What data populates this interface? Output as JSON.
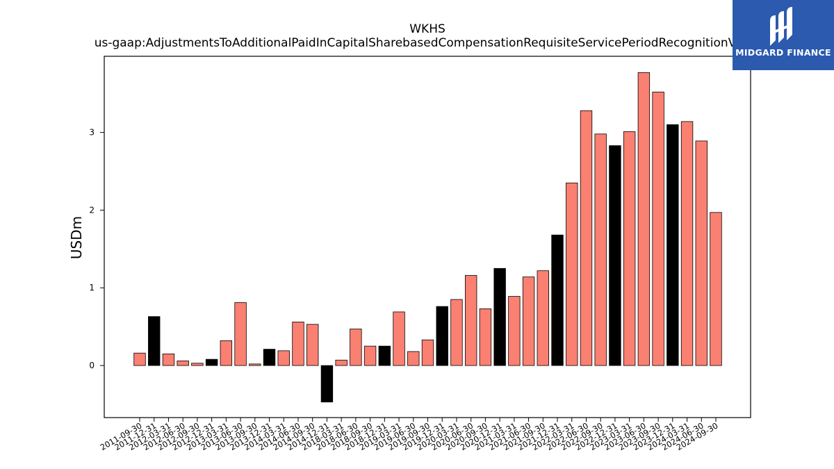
{
  "chart_data": {
    "type": "bar",
    "title": "WKHS",
    "subtitle": "us-gaap:AdjustmentsToAdditionalPaidInCapitalSharebasedCompensationRequisiteServicePeriodRecognitionValue",
    "xlabel": "",
    "ylabel": "USDm",
    "ylim": [
      -0.67,
      3.98
    ],
    "yticks": [
      0,
      1,
      2,
      3
    ],
    "grid": false,
    "categories": [
      "2011-09-30",
      "2011-12-31",
      "2012-03-31",
      "2012-06-30",
      "2012-09-30",
      "2012-12-31",
      "2013-03-31",
      "2013-06-30",
      "2013-09-30",
      "2013-12-31",
      "2014-03-31",
      "2014-06-30",
      "2014-09-30",
      "2014-12-31",
      "2018-03-31",
      "2018-06-30",
      "2018-09-30",
      "2018-12-31",
      "2019-03-31",
      "2019-06-30",
      "2019-09-30",
      "2019-12-31",
      "2020-03-31",
      "2020-06-30",
      "2020-09-30",
      "2020-12-31",
      "2021-03-31",
      "2021-06-30",
      "2021-09-30",
      "2021-12-31",
      "2022-03-31",
      "2022-06-30",
      "2022-09-30",
      "2022-12-31",
      "2023-03-31",
      "2023-06-30",
      "2023-09-30",
      "2023-12-31",
      "2024-03-31",
      "2024-06-30",
      "2024-09-30"
    ],
    "values": [
      0.16,
      0.63,
      0.15,
      0.06,
      0.03,
      0.08,
      0.32,
      0.81,
      0.02,
      0.21,
      0.19,
      0.56,
      0.53,
      -0.47,
      0.07,
      0.47,
      0.25,
      0.25,
      0.69,
      0.18,
      0.33,
      0.76,
      0.85,
      1.16,
      0.73,
      1.25,
      0.89,
      1.14,
      1.22,
      1.68,
      2.35,
      3.28,
      2.98,
      2.83,
      3.01,
      3.77,
      3.52,
      3.1,
      3.14,
      2.89,
      1.97
    ],
    "highlight_indices": [
      1,
      5,
      9,
      13,
      17,
      21,
      25,
      29,
      33,
      37
    ],
    "colors": {
      "bar": "#fa8072",
      "highlight": "#000000",
      "edge": "#000000"
    }
  },
  "logo": {
    "text": "MIDGARD FINANCE",
    "background": "#2b5aae"
  }
}
